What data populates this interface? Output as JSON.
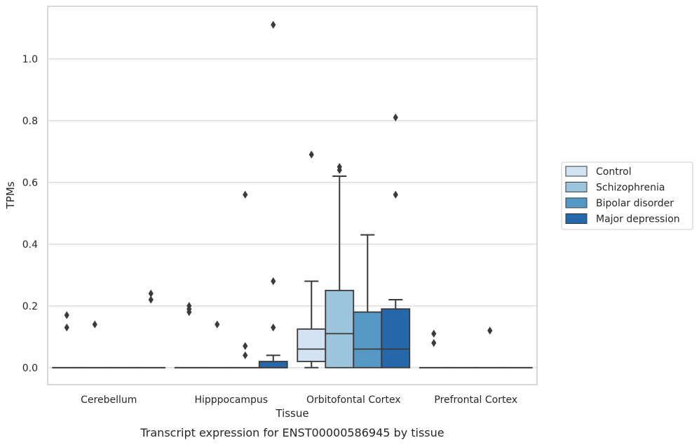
{
  "chart_data": {
    "type": "box",
    "caption": "Transcript expression for ENST00000586945 by tissue",
    "xlabel": "Tissue",
    "ylabel": "TPMs",
    "ylim": [
      -0.055,
      1.17
    ],
    "yticks": [
      "0.0",
      "0.2",
      "0.4",
      "0.6",
      "0.8",
      "1.0"
    ],
    "ytick_values": [
      0.0,
      0.2,
      0.4,
      0.6,
      0.8,
      1.0
    ],
    "grid": "horizontal",
    "legend_position": "right",
    "categories": [
      "Cerebellum",
      "Hipppocampus",
      "Orbitofontal Cortex",
      "Prefrontal Cortex"
    ],
    "series": [
      {
        "name": "Control",
        "color": "#d3e3f2",
        "boxes": [
          {
            "q1": 0,
            "median": 0,
            "q3": 0,
            "whislo": 0,
            "whishi": 0,
            "fliers": [
              0.13,
              0.17
            ]
          },
          {
            "q1": 0,
            "median": 0,
            "q3": 0,
            "whislo": 0,
            "whishi": 0,
            "fliers": [
              0.18,
              0.19,
              0.2
            ]
          },
          {
            "q1": 0.02,
            "median": 0.06,
            "q3": 0.125,
            "whislo": 0,
            "whishi": 0.28,
            "fliers": [
              0.69
            ]
          },
          {
            "q1": 0,
            "median": 0,
            "q3": 0,
            "whislo": 0,
            "whishi": 0,
            "fliers": [
              0.08,
              0.11
            ]
          }
        ]
      },
      {
        "name": "Schizophrenia",
        "color": "#9cc4dc",
        "boxes": [
          {
            "q1": 0,
            "median": 0,
            "q3": 0,
            "whislo": 0,
            "whishi": 0,
            "fliers": [
              0.14
            ]
          },
          {
            "q1": 0,
            "median": 0,
            "q3": 0,
            "whislo": 0,
            "whishi": 0,
            "fliers": [
              0.14
            ]
          },
          {
            "q1": 0,
            "median": 0.11,
            "q3": 0.25,
            "whislo": 0,
            "whishi": 0.62,
            "fliers": [
              0.64,
              0.65
            ]
          },
          {
            "q1": 0,
            "median": 0,
            "q3": 0,
            "whislo": 0,
            "whishi": 0,
            "fliers": []
          }
        ]
      },
      {
        "name": "Bipolar disorder",
        "color": "#5698c5",
        "boxes": [
          {
            "q1": 0,
            "median": 0,
            "q3": 0,
            "whislo": 0,
            "whishi": 0,
            "fliers": []
          },
          {
            "q1": 0,
            "median": 0,
            "q3": 0,
            "whislo": 0,
            "whishi": 0,
            "fliers": [
              0.04,
              0.07,
              0.56
            ]
          },
          {
            "q1": 0,
            "median": 0.06,
            "q3": 0.18,
            "whislo": 0,
            "whishi": 0.43,
            "fliers": []
          },
          {
            "q1": 0,
            "median": 0,
            "q3": 0,
            "whislo": 0,
            "whishi": 0,
            "fliers": [
              0.12
            ]
          }
        ]
      },
      {
        "name": "Major depression",
        "color": "#2468a9",
        "boxes": [
          {
            "q1": 0,
            "median": 0,
            "q3": 0,
            "whislo": 0,
            "whishi": 0,
            "fliers": [
              0.22,
              0.24
            ]
          },
          {
            "q1": 0,
            "median": 0,
            "q3": 0.02,
            "whislo": 0,
            "whishi": 0.04,
            "fliers": [
              0.13,
              0.28,
              1.11
            ]
          },
          {
            "q1": 0,
            "median": 0.06,
            "q3": 0.19,
            "whislo": 0,
            "whishi": 0.22,
            "fliers": [
              0.56,
              0.81
            ]
          },
          {
            "q1": 0,
            "median": 0,
            "q3": 0,
            "whislo": 0,
            "whishi": 0,
            "fliers": []
          }
        ]
      }
    ]
  }
}
